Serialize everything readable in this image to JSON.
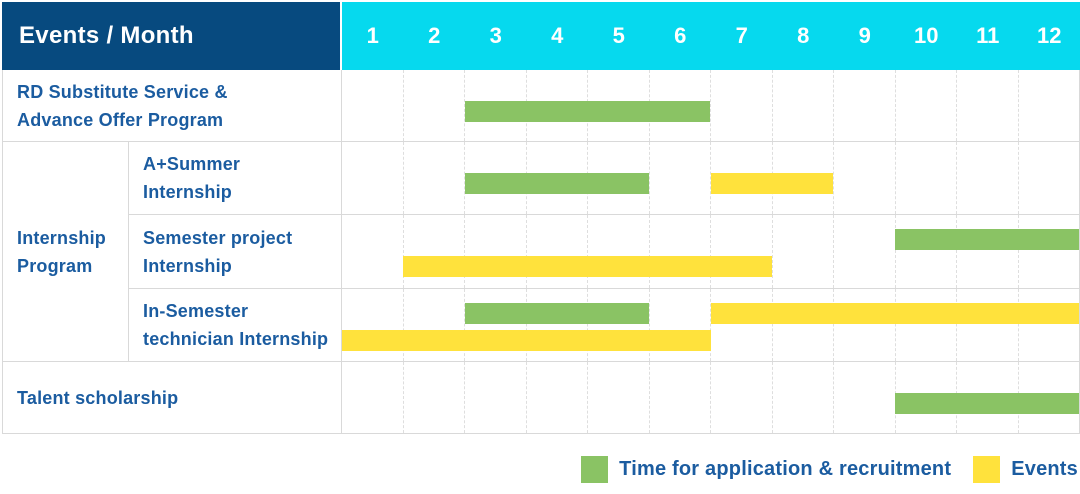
{
  "header": {
    "corner_label": "Events / Month"
  },
  "colors": {
    "header_bg": "#074a7f",
    "month_strip_bg": "#06d9ee",
    "bar_green": "#8ac364",
    "bar_yellow": "#ffe23c",
    "label_text": "#1b5ca0",
    "grid_line": "#d9d9d9"
  },
  "chart_data": {
    "type": "gantt",
    "x_axis": {
      "label": "Month",
      "ticks": [
        "1",
        "2",
        "3",
        "4",
        "5",
        "6",
        "7",
        "8",
        "9",
        "10",
        "11",
        "12"
      ],
      "range": [
        1,
        12
      ]
    },
    "group_label_lines": [
      "Internship",
      "Program"
    ],
    "series": [
      {
        "name": "Time for application & recruitment",
        "color_key": "bar_green",
        "color": "#8ac364"
      },
      {
        "name": "Events",
        "color_key": "bar_yellow",
        "color": "#ffe23c"
      }
    ],
    "rows": [
      {
        "group": null,
        "label": "RD Substitute Service & Advance Offer Program",
        "label_lines": [
          "RD Substitute Service &",
          "Advance Offer Program"
        ],
        "bars": [
          {
            "series": "Time for application & recruitment",
            "color_key": "bar_green",
            "start_month": 3,
            "end_month": 6,
            "lane": "single"
          }
        ]
      },
      {
        "group": "Internship Program",
        "label": "A+Summer Internship",
        "label_lines": [
          "A+Summer",
          "Internship"
        ],
        "bars": [
          {
            "series": "Time for application & recruitment",
            "color_key": "bar_green",
            "start_month": 3,
            "end_month": 5,
            "lane": "single"
          },
          {
            "series": "Events",
            "color_key": "bar_yellow",
            "start_month": 7,
            "end_month": 8,
            "lane": "single"
          }
        ]
      },
      {
        "group": "Internship Program",
        "label": "Semester project Internship",
        "label_lines": [
          "Semester project",
          "Internship"
        ],
        "bars": [
          {
            "series": "Time for application & recruitment",
            "color_key": "bar_green",
            "start_month": 10,
            "end_month": 12,
            "lane": "top"
          },
          {
            "series": "Events",
            "color_key": "bar_yellow",
            "start_month": 2,
            "end_month": 7,
            "lane": "bottom"
          }
        ]
      },
      {
        "group": "Internship Program",
        "label": "In-Semester technician Internship",
        "label_lines": [
          "In-Semester",
          "technician Internship"
        ],
        "bars": [
          {
            "series": "Time for application & recruitment",
            "color_key": "bar_green",
            "start_month": 3,
            "end_month": 5,
            "lane": "top"
          },
          {
            "series": "Events",
            "color_key": "bar_yellow",
            "start_month": 7,
            "end_month": 12,
            "lane": "top"
          },
          {
            "series": "Events",
            "color_key": "bar_yellow",
            "start_month": 1,
            "end_month": 6,
            "lane": "bottom"
          }
        ]
      },
      {
        "group": null,
        "label": "Talent scholarship",
        "label_lines": [
          "Talent scholarship"
        ],
        "bars": [
          {
            "series": "Time for application & recruitment",
            "color_key": "bar_green",
            "start_month": 10,
            "end_month": 12,
            "lane": "single"
          }
        ]
      }
    ],
    "legend": [
      {
        "label": "Time for application & recruitment",
        "color_key": "bar_green"
      },
      {
        "label": "Events",
        "color_key": "bar_yellow"
      }
    ]
  }
}
